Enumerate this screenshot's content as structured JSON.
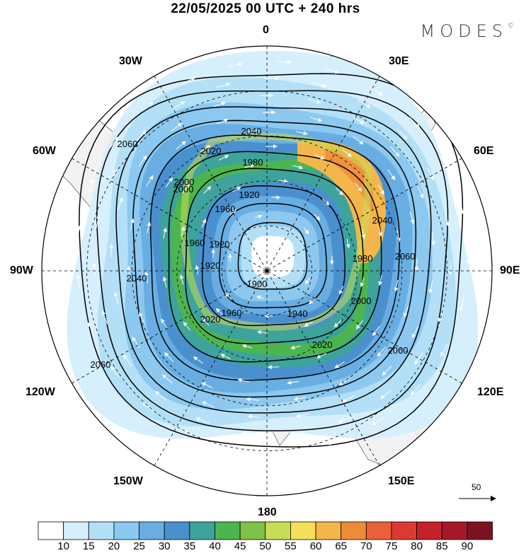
{
  "title": "22/05/2025  00 UTC  + 240 hrs",
  "brand": "MODES",
  "brand_mark": "©",
  "longitude_labels": {
    "n": "0",
    "s": "180",
    "w": "90W",
    "e": "90E",
    "nw30": "30W",
    "ne30": "30E",
    "nw60": "60W",
    "ne60": "60E",
    "sw120": "120W",
    "se120": "120E",
    "sw150": "150W",
    "se150": "150E"
  },
  "contour_labels": [
    "2040",
    "2020",
    "1980",
    "2060",
    "1920",
    "2000",
    "1960",
    "1920",
    "1900",
    "1960",
    "1940",
    "1980",
    "2000",
    "2020",
    "2040",
    "2060",
    "2040",
    "2060",
    "2060",
    "2020",
    "2000",
    "1960",
    "1920"
  ],
  "vector_scale": {
    "value": "50"
  },
  "colorbar": {
    "levels": [
      "10",
      "15",
      "20",
      "25",
      "30",
      "35",
      "40",
      "45",
      "50",
      "55",
      "60",
      "65",
      "70",
      "75",
      "80",
      "85",
      "90"
    ],
    "colors": [
      "#ffffff",
      "#d6effc",
      "#b3e0f7",
      "#8cc8ef",
      "#68aee3",
      "#4a90cf",
      "#3ea39a",
      "#4db54f",
      "#7ec247",
      "#c8dc55",
      "#f5df5b",
      "#f3b64a",
      "#ef8a3a",
      "#e9603a",
      "#db3a32",
      "#c4222a",
      "#a5182a",
      "#7e1320"
    ]
  },
  "colors": {
    "land": "#f2f2f2",
    "coast": "#555555",
    "contour": "#000000",
    "arrow": "#ffffff"
  }
}
